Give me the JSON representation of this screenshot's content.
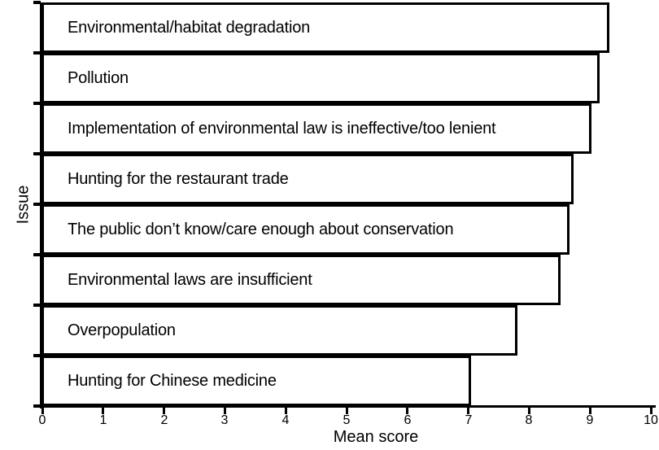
{
  "figure": {
    "background_color": "#ffffff",
    "bar_fill_color": "#ffffff",
    "bar_border_color": "#000000",
    "axis_color": "#000000",
    "text_color": "#000000"
  },
  "chart_data": {
    "type": "bar",
    "orientation": "horizontal",
    "title": "",
    "xlabel": "Mean score",
    "ylabel": "Issue",
    "xlim": [
      0,
      10
    ],
    "xticks": [
      0,
      1,
      2,
      3,
      4,
      5,
      6,
      7,
      8,
      9,
      10
    ],
    "xtick_labels": [
      "0",
      "1",
      "2",
      "3",
      "4",
      "5",
      "6",
      "7",
      "8",
      "9",
      "10"
    ],
    "grid": false,
    "legend": null,
    "category_labels_inside_bars": true,
    "categories": [
      "Environmental/habitat degradation",
      "Pollution",
      "Implementation of environmental law is ineffective/too lenient",
      "Hunting for the restaurant trade",
      "The public don’t know/care enough about conservation",
      "Environmental laws are insufficient",
      "Overpopulation",
      "Hunting for Chinese medicine"
    ],
    "values": [
      9.33,
      9.17,
      9.04,
      8.74,
      8.68,
      8.53,
      7.82,
      7.06
    ]
  }
}
